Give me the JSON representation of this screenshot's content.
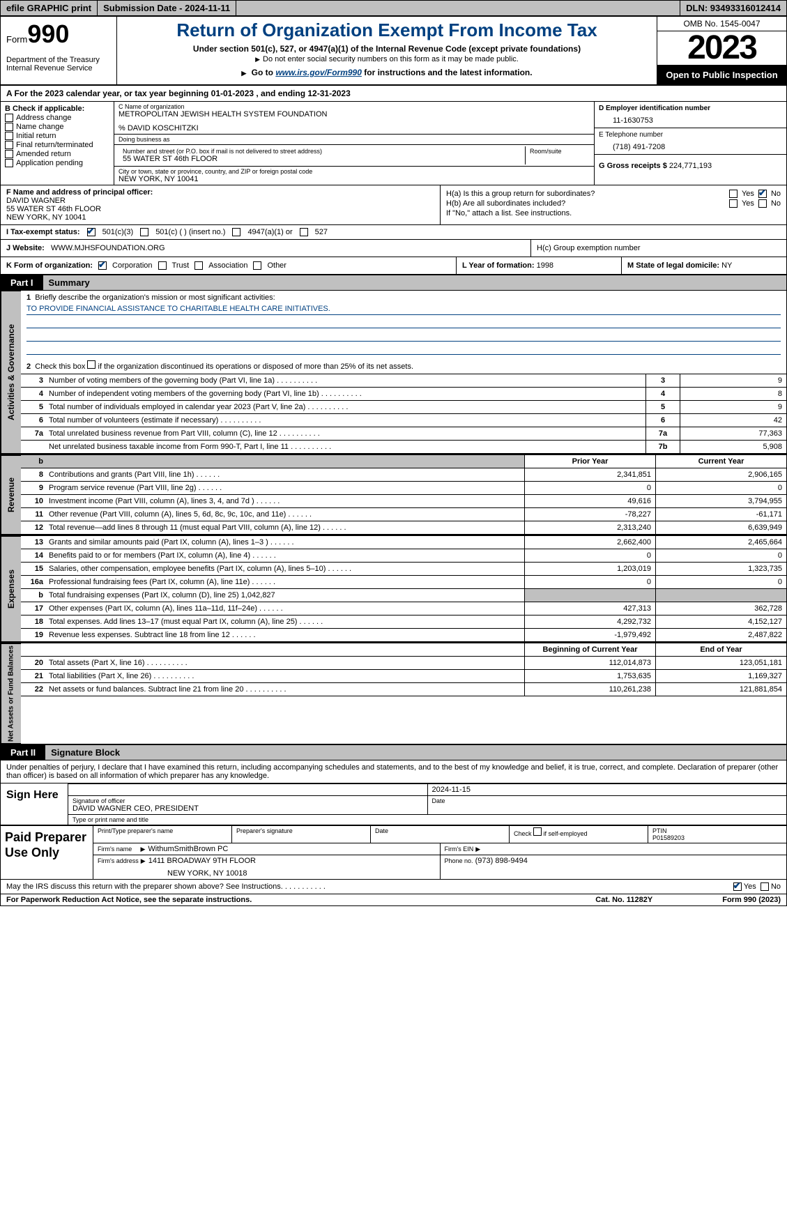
{
  "topbar": {
    "efile": "efile GRAPHIC print",
    "sub_label": "Submission Date - 2024-11-11",
    "dln": "DLN: 93493316012414"
  },
  "header": {
    "form_prefix": "Form",
    "form_number": "990",
    "dept": "Department of the Treasury Internal Revenue Service",
    "title": "Return of Organization Exempt From Income Tax",
    "sub1": "Under section 501(c), 527, or 4947(a)(1) of the Internal Revenue Code (except private foundations)",
    "sub2": "Do not enter social security numbers on this form as it may be made public.",
    "sub3_prefix": "Go to ",
    "sub3_link": "www.irs.gov/Form990",
    "sub3_suffix": " for instructions and the latest information.",
    "omb": "OMB No. 1545-0047",
    "year": "2023",
    "open": "Open to Public Inspection"
  },
  "lineA": "A For the 2023 calendar year, or tax year beginning 01-01-2023   , and ending 12-31-2023",
  "secB": {
    "label": "B Check if applicable:",
    "items": [
      "Address change",
      "Name change",
      "Initial return",
      "Final return/terminated",
      "Amended return",
      "Application pending"
    ]
  },
  "secC": {
    "name_label": "C Name of organization",
    "org_name": "METROPOLITAN JEWISH HEALTH SYSTEM FOUNDATION",
    "care_of": "% DAVID KOSCHITZKI",
    "dba_label": "Doing business as",
    "addr_label": "Number and street (or P.O. box if mail is not delivered to street address)",
    "addr": "55 WATER ST 46th FLOOR",
    "room_label": "Room/suite",
    "city_label": "City or town, state or province, country, and ZIP or foreign postal code",
    "city": "NEW YORK, NY  10041"
  },
  "secD": {
    "label": "D Employer identification number",
    "ein": "11-1630753",
    "elabel": "E Telephone number",
    "phone": "(718) 491-7208",
    "glabel": "G Gross receipts $",
    "gross": "224,771,193"
  },
  "secF": {
    "label": "F  Name and address of principal officer:",
    "name": "DAVID WAGNER",
    "addr1": "55 WATER ST 46th FLOOR",
    "addr2": "NEW YORK, NY  10041"
  },
  "secH": {
    "ha": "H(a)  Is this a group return for subordinates?",
    "hb": "H(b)  Are all subordinates included?",
    "hb_note": "If \"No,\" attach a list. See instructions.",
    "hc": "H(c)  Group exemption number",
    "yes": "Yes",
    "no": "No"
  },
  "secI": {
    "label": "I  Tax-exempt status:",
    "opt1": "501(c)(3)",
    "opt2": "501(c) (  ) (insert no.)",
    "opt3": "4947(a)(1) or",
    "opt4": "527"
  },
  "secJ": {
    "label": "J  Website:",
    "val": "WWW.MJHSFOUNDATION.ORG"
  },
  "secK": {
    "label": "K Form of organization:",
    "opts": [
      "Corporation",
      "Trust",
      "Association",
      "Other"
    ]
  },
  "secL": {
    "label": "L Year of formation:",
    "val": "1998"
  },
  "secM": {
    "label": "M State of legal domicile:",
    "val": "NY"
  },
  "part1": {
    "label": "Part I",
    "title": "Summary",
    "line1": "Briefly describe the organization's mission or most significant activities:",
    "mission": "TO PROVIDE FINANCIAL ASSISTANCE TO CHARITABLE HEALTH CARE INITIATIVES.",
    "line2": "Check this box        if the organization discontinued its operations or disposed of more than 25% of its net assets."
  },
  "sidelabels": {
    "s1": "Activities & Governance",
    "s2": "Revenue",
    "s3": "Expenses",
    "s4": "Net Assets or Fund Balances"
  },
  "col_headers": {
    "prior": "Prior Year",
    "current": "Current Year",
    "boy": "Beginning of Current Year",
    "eoy": "End of Year"
  },
  "rows_gov": [
    {
      "n": "3",
      "t": "Number of voting members of the governing body (Part VI, line 1a)",
      "rn": "3",
      "v": "9"
    },
    {
      "n": "4",
      "t": "Number of independent voting members of the governing body (Part VI, line 1b)",
      "rn": "4",
      "v": "8"
    },
    {
      "n": "5",
      "t": "Total number of individuals employed in calendar year 2023 (Part V, line 2a)",
      "rn": "5",
      "v": "9"
    },
    {
      "n": "6",
      "t": "Total number of volunteers (estimate if necessary)",
      "rn": "6",
      "v": "42"
    },
    {
      "n": "7a",
      "t": "Total unrelated business revenue from Part VIII, column (C), line 12",
      "rn": "7a",
      "v": "77,363"
    },
    {
      "n": "",
      "t": "Net unrelated business taxable income from Form 990-T, Part I, line 11",
      "rn": "7b",
      "v": "5,908"
    }
  ],
  "rows_rev": [
    {
      "n": "8",
      "t": "Contributions and grants (Part VIII, line 1h)",
      "p": "2,341,851",
      "c": "2,906,165"
    },
    {
      "n": "9",
      "t": "Program service revenue (Part VIII, line 2g)",
      "p": "0",
      "c": "0"
    },
    {
      "n": "10",
      "t": "Investment income (Part VIII, column (A), lines 3, 4, and 7d )",
      "p": "49,616",
      "c": "3,794,955"
    },
    {
      "n": "11",
      "t": "Other revenue (Part VIII, column (A), lines 5, 6d, 8c, 9c, 10c, and 11e)",
      "p": "-78,227",
      "c": "-61,171"
    },
    {
      "n": "12",
      "t": "Total revenue—add lines 8 through 11 (must equal Part VIII, column (A), line 12)",
      "p": "2,313,240",
      "c": "6,639,949"
    }
  ],
  "rows_exp": [
    {
      "n": "13",
      "t": "Grants and similar amounts paid (Part IX, column (A), lines 1–3 )",
      "p": "2,662,400",
      "c": "2,465,664"
    },
    {
      "n": "14",
      "t": "Benefits paid to or for members (Part IX, column (A), line 4)",
      "p": "0",
      "c": "0"
    },
    {
      "n": "15",
      "t": "Salaries, other compensation, employee benefits (Part IX, column (A), lines 5–10)",
      "p": "1,203,019",
      "c": "1,323,735"
    },
    {
      "n": "16a",
      "t": "Professional fundraising fees (Part IX, column (A), line 11e)",
      "p": "0",
      "c": "0"
    },
    {
      "n": "b",
      "t": "Total fundraising expenses (Part IX, column (D), line 25) 1,042,827",
      "p": "",
      "c": "",
      "grey": true
    },
    {
      "n": "17",
      "t": "Other expenses (Part IX, column (A), lines 11a–11d, 11f–24e)",
      "p": "427,313",
      "c": "362,728"
    },
    {
      "n": "18",
      "t": "Total expenses. Add lines 13–17 (must equal Part IX, column (A), line 25)",
      "p": "4,292,732",
      "c": "4,152,127"
    },
    {
      "n": "19",
      "t": "Revenue less expenses. Subtract line 18 from line 12",
      "p": "-1,979,492",
      "c": "2,487,822"
    }
  ],
  "rows_net": [
    {
      "n": "20",
      "t": "Total assets (Part X, line 16)",
      "p": "112,014,873",
      "c": "123,051,181"
    },
    {
      "n": "21",
      "t": "Total liabilities (Part X, line 26)",
      "p": "1,753,635",
      "c": "1,169,327"
    },
    {
      "n": "22",
      "t": "Net assets or fund balances. Subtract line 21 from line 20",
      "p": "110,261,238",
      "c": "121,881,854"
    }
  ],
  "part2": {
    "label": "Part II",
    "title": "Signature Block",
    "declaration": "Under penalties of perjury, I declare that I have examined this return, including accompanying schedules and statements, and to the best of my knowledge and belief, it is true, correct, and complete. Declaration of preparer (other than officer) is based on all information of which preparer has any knowledge."
  },
  "sign": {
    "label": "Sign Here",
    "date": "2024-11-15",
    "sig_officer_label": "Signature of officer",
    "officer": "DAVID WAGNER  CEO, PRESIDENT",
    "type_label": "Type or print name and title",
    "date_label": "Date"
  },
  "preparer": {
    "label": "Paid Preparer Use Only",
    "h1": "Print/Type preparer's name",
    "h2": "Preparer's signature",
    "h3": "Date",
    "h4_pre": "Check",
    "h4_post": "if self-employed",
    "h5": "PTIN",
    "ptin": "P01589203",
    "firm_label": "Firm's name",
    "firm": "WithumSmithBrown PC",
    "ein_label": "Firm's EIN",
    "addr_label": "Firm's address",
    "addr1": "1411 BROADWAY 9TH FLOOR",
    "addr2": "NEW YORK, NY  10018",
    "phone_label": "Phone no.",
    "phone": "(973) 898-9494"
  },
  "footer": {
    "discuss": "May the IRS discuss this return with the preparer shown above? See Instructions.",
    "yes": "Yes",
    "no": "No",
    "paperwork": "For Paperwork Reduction Act Notice, see the separate instructions.",
    "cat": "Cat. No. 11282Y",
    "form": "Form 990 (2023)"
  }
}
